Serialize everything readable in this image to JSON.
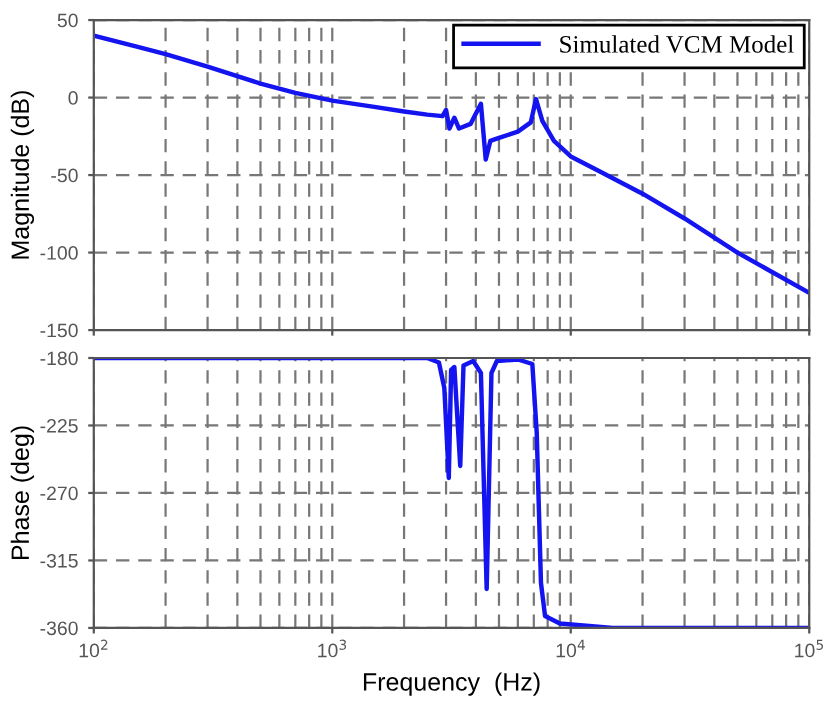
{
  "chart_data": [
    {
      "type": "line",
      "ylabel": "Magnitude (dB)",
      "xlim": [
        100,
        100000
      ],
      "ylim": [
        -150,
        50
      ],
      "log": "x",
      "grid": true,
      "legend": "top right",
      "tick_labels": "y",
      "yticks": [
        50,
        0,
        -50,
        -100,
        -150
      ],
      "series": [
        {
          "name": "Simulated VCM Model",
          "color": "#1414f0",
          "x": [
            100,
            150,
            200,
            300,
            500,
            700,
            1000,
            1500,
            2000,
            2500,
            2900,
            3000,
            3100,
            3250,
            3400,
            3800,
            4200,
            4400,
            4600,
            5000,
            6000,
            6800,
            7150,
            7600,
            8500,
            10000,
            13000,
            20000,
            30000,
            50000,
            100000
          ],
          "values": [
            40,
            33,
            28,
            20,
            9,
            3,
            -2,
            -6,
            -9,
            -11,
            -12,
            -8,
            -20,
            -13,
            -20,
            -17,
            -4,
            -40,
            -28,
            -26,
            -22,
            -16,
            -1,
            -15,
            -28,
            -38,
            -47,
            -62,
            -78,
            -100,
            -126
          ]
        }
      ]
    },
    {
      "type": "line",
      "xlabel": "Frequency  (Hz)",
      "ylabel": "Phase (deg)",
      "xlim": [
        100,
        100000
      ],
      "ylim": [
        -360,
        -180
      ],
      "log": "x",
      "grid": true,
      "xticks": [
        {
          "value": 100,
          "label": "10$^{2}$"
        },
        {
          "value": 1000,
          "label": "10$^{3}$"
        },
        {
          "value": 10000,
          "label": "10$^{4}$"
        },
        {
          "value": 100000,
          "label": "10$^{5}$"
        }
      ],
      "yticks": [
        -180,
        -225,
        -270,
        -315,
        -360
      ],
      "series": [
        {
          "color": "#1414f0",
          "x": [
            100,
            2500,
            2800,
            2950,
            3080,
            3150,
            3250,
            3440,
            3550,
            3900,
            4200,
            4440,
            4650,
            4900,
            6000,
            6900,
            7200,
            7500,
            7800,
            9000,
            15000,
            100000
          ],
          "values": [
            -180,
            -180,
            -183,
            -200,
            -260,
            -188,
            -186,
            -252,
            -185,
            -182,
            -190,
            -334,
            -190,
            -182,
            -181,
            -184,
            -230,
            -330,
            -352,
            -357,
            -360,
            -360
          ]
        }
      ]
    }
  ]
}
